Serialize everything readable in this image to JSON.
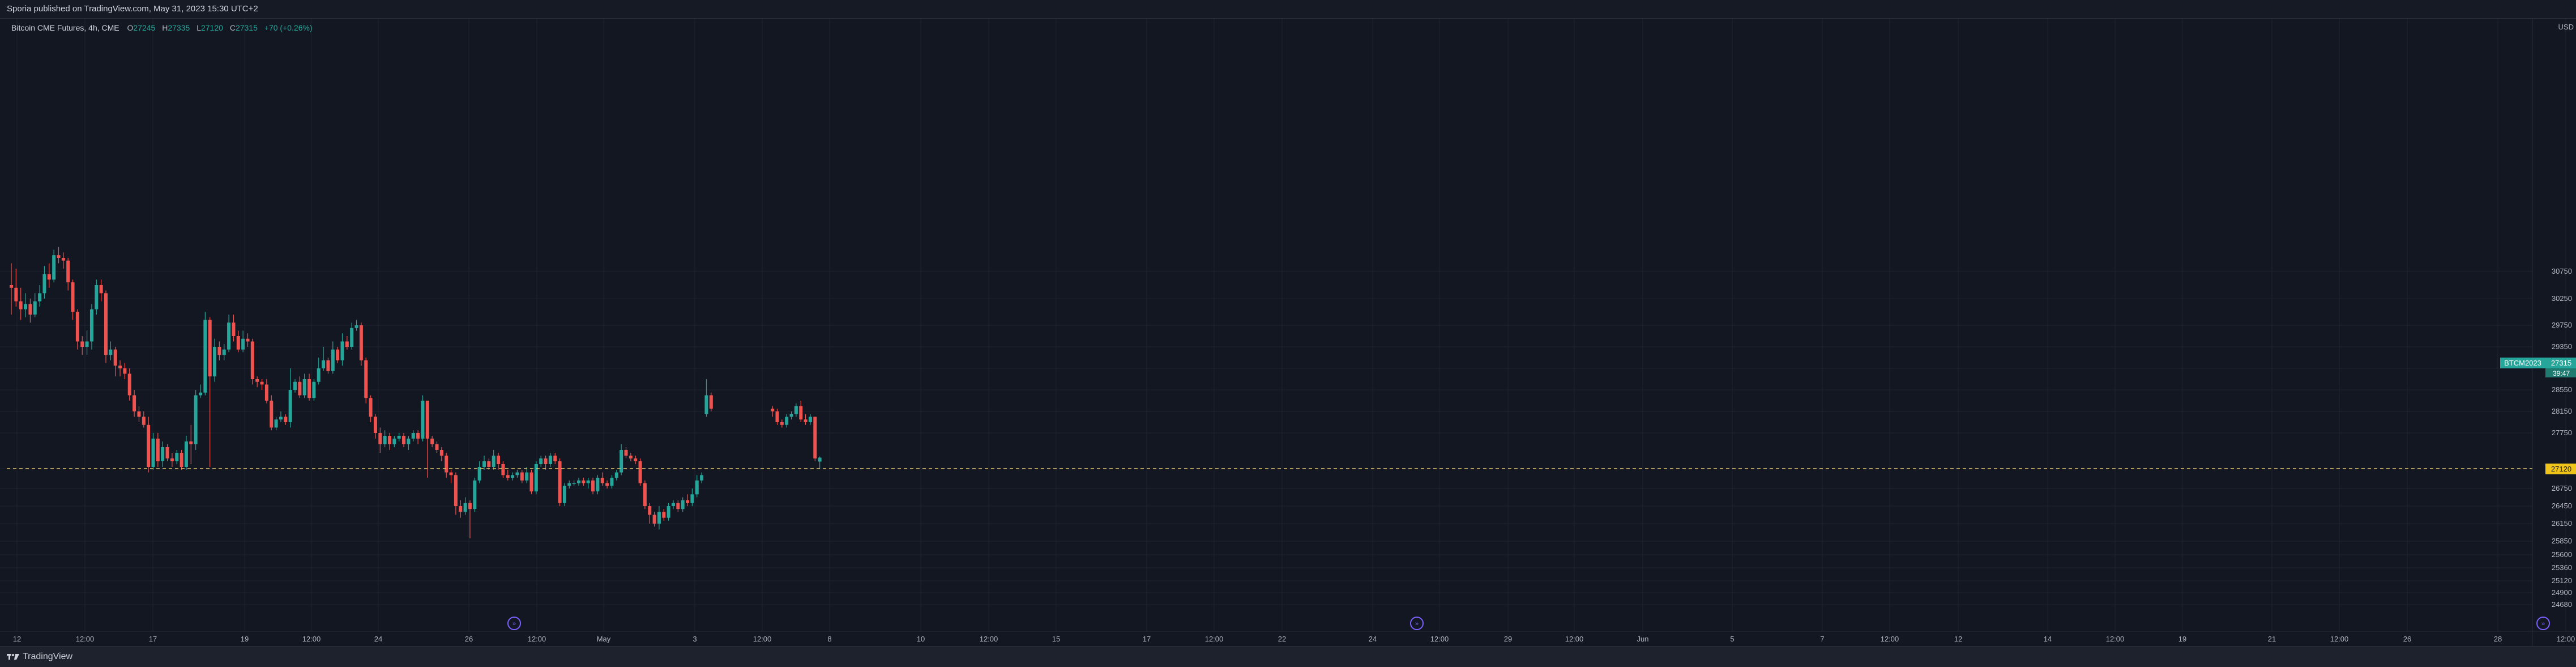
{
  "header": {
    "published": "Sporia published on TradingView.com, May 31, 2023 15:30 UTC+2"
  },
  "legend": {
    "title": "Bitcoin CME Futures, 4h, CME",
    "o_label": "O",
    "o": "27245",
    "h_label": "H",
    "h": "27335",
    "l_label": "L",
    "l": "27120",
    "c_label": "C",
    "c": "27315",
    "change": "+70 (+0.26%)"
  },
  "footer": {
    "brand": "TradingView"
  },
  "colors": {
    "up": "#26a69a",
    "down": "#ef5350",
    "background": "#131722",
    "grid": "#1f2330",
    "axis_text": "#b2b5be"
  },
  "price_tags": {
    "symbol_label": "BTCM2023",
    "last_price": "27315",
    "countdown": "39:47",
    "dashed_price": 27120,
    "dashed_label": "27120"
  },
  "chart_data": {
    "type": "candlestick",
    "currency": "USD",
    "y_ticks": [
      24680,
      24900,
      25120,
      25360,
      25600,
      25850,
      26150,
      26450,
      26750,
      27120,
      27750,
      28150,
      28550,
      28950,
      29350,
      29750,
      30250,
      30750
    ],
    "x_labels": [
      "12",
      "12:00",
      "17",
      "19",
      "12:00",
      "24",
      "26",
      "12:00",
      "May",
      "3",
      "12:00",
      "8",
      "10",
      "12:00",
      "15",
      "17",
      "12:00",
      "22",
      "24",
      "12:00",
      "29",
      "12:00",
      "Jun",
      "5",
      "7",
      "12:00",
      "12",
      "14",
      "12:00",
      "19",
      "21",
      "12:00",
      "26",
      "28",
      "12:00"
    ],
    "candles": [
      [
        30500,
        30450,
        30900,
        29950
      ],
      [
        30450,
        30200,
        30800,
        30100
      ],
      [
        30200,
        30050,
        30450,
        29850
      ],
      [
        30050,
        30150,
        30350,
        29900
      ],
      [
        30150,
        29950,
        30250,
        29800
      ],
      [
        29950,
        30200,
        30350,
        29900
      ],
      [
        30200,
        30350,
        30500,
        30100
      ],
      [
        30350,
        30700,
        30850,
        30250
      ],
      [
        30700,
        30600,
        30900,
        30450
      ],
      [
        30600,
        31050,
        31150,
        30550
      ],
      [
        31050,
        31000,
        31200,
        30900
      ],
      [
        31000,
        30950,
        31100,
        30800
      ],
      [
        30950,
        30550,
        31000,
        30400
      ],
      [
        30550,
        30000,
        30600,
        29850
      ],
      [
        30000,
        29450,
        30050,
        29300
      ],
      [
        29450,
        29350,
        29550,
        29200
      ],
      [
        29350,
        29450,
        29650,
        29200
      ],
      [
        29450,
        30050,
        30150,
        29300
      ],
      [
        30050,
        30500,
        30600,
        29950
      ],
      [
        30500,
        30350,
        30600,
        30200
      ],
      [
        30350,
        29200,
        30400,
        29050
      ],
      [
        29200,
        29300,
        29450,
        29100
      ],
      [
        29300,
        29000,
        29350,
        28800
      ],
      [
        29000,
        28950,
        29100,
        28800
      ],
      [
        28950,
        28850,
        29050,
        28750
      ],
      [
        28850,
        28450,
        28950,
        28350
      ],
      [
        28450,
        28150,
        28550,
        28050
      ],
      [
        28150,
        28050,
        28250,
        27950
      ],
      [
        28050,
        27900,
        28150,
        27850
      ],
      [
        27900,
        27150,
        28050,
        27050
      ],
      [
        27150,
        27650,
        27750,
        27100
      ],
      [
        27650,
        27250,
        27750,
        27150
      ],
      [
        27250,
        27500,
        27600,
        27150
      ],
      [
        27500,
        27300,
        27550,
        27250
      ],
      [
        27300,
        27250,
        27400,
        27150
      ],
      [
        27250,
        27400,
        27450,
        27200
      ],
      [
        27400,
        27150,
        27450,
        27100
      ],
      [
        27150,
        27600,
        27700,
        27100
      ],
      [
        27600,
        27550,
        27900,
        27200
      ],
      [
        27550,
        28450,
        28550,
        27450
      ],
      [
        28450,
        28500,
        28650,
        28400
      ],
      [
        28500,
        29850,
        30000,
        28450
      ],
      [
        29850,
        28800,
        29900,
        27150
      ],
      [
        28800,
        29350,
        29500,
        28700
      ],
      [
        29350,
        29200,
        29450,
        29100
      ],
      [
        29200,
        29300,
        29400,
        29100
      ],
      [
        29300,
        29800,
        29950,
        29250
      ],
      [
        29800,
        29550,
        29950,
        29450
      ],
      [
        29550,
        29300,
        29650,
        29250
      ],
      [
        29300,
        29500,
        29650,
        29250
      ],
      [
        29500,
        29450,
        29600,
        29350
      ],
      [
        29450,
        28750,
        29500,
        28650
      ],
      [
        28750,
        28700,
        28800,
        28600
      ],
      [
        28700,
        28650,
        28750,
        28550
      ],
      [
        28650,
        28350,
        28750,
        28300
      ],
      [
        28350,
        27850,
        28450,
        27800
      ],
      [
        27850,
        28000,
        28050,
        27800
      ],
      [
        28000,
        28050,
        28150,
        27950
      ],
      [
        28050,
        27950,
        28100,
        27900
      ],
      [
        27950,
        28550,
        28950,
        27850
      ],
      [
        28550,
        28700,
        28750,
        28500
      ],
      [
        28700,
        28450,
        28800,
        28400
      ],
      [
        28450,
        28750,
        28850,
        28400
      ],
      [
        28750,
        28400,
        28850,
        28350
      ],
      [
        28400,
        28700,
        28750,
        28350
      ],
      [
        28700,
        28950,
        29150,
        28650
      ],
      [
        28950,
        29100,
        29350,
        28900
      ],
      [
        29100,
        28900,
        29150,
        28850
      ],
      [
        28900,
        29300,
        29450,
        28850
      ],
      [
        29300,
        29100,
        29350,
        29050
      ],
      [
        29100,
        29450,
        29600,
        29000
      ],
      [
        29450,
        29350,
        29550,
        29300
      ],
      [
        29350,
        29700,
        29800,
        29300
      ],
      [
        29700,
        29750,
        29850,
        29650
      ],
      [
        29750,
        29100,
        29800,
        29000
      ],
      [
        29100,
        28400,
        29150,
        28300
      ],
      [
        28400,
        28050,
        28450,
        27950
      ],
      [
        28050,
        27750,
        28100,
        27650
      ],
      [
        27750,
        27550,
        27850,
        27400
      ],
      [
        27550,
        27700,
        27800,
        27500
      ],
      [
        27700,
        27550,
        27750,
        27450
      ],
      [
        27550,
        27650,
        27700,
        27500
      ],
      [
        27650,
        27700,
        27750,
        27600
      ],
      [
        27700,
        27550,
        27750,
        27500
      ],
      [
        27550,
        27650,
        27700,
        27450
      ],
      [
        27650,
        27750,
        27800,
        27600
      ],
      [
        27750,
        27650,
        27800,
        27550
      ],
      [
        27650,
        28350,
        28450,
        27600
      ],
      [
        28350,
        27650,
        28350,
        26950
      ],
      [
        27650,
        27550,
        27700,
        27500
      ],
      [
        27550,
        27450,
        27600,
        27400
      ],
      [
        27450,
        27350,
        27500,
        27250
      ],
      [
        27350,
        27050,
        27400,
        26950
      ],
      [
        27050,
        27000,
        27100,
        26850
      ],
      [
        27000,
        26450,
        27050,
        26300
      ],
      [
        26450,
        26350,
        26550,
        26250
      ],
      [
        26350,
        26500,
        26600,
        26300
      ],
      [
        26500,
        26400,
        26550,
        25900
      ],
      [
        26400,
        26900,
        26950,
        26350
      ],
      [
        26900,
        27150,
        27250,
        26850
      ],
      [
        27150,
        27250,
        27350,
        27100
      ],
      [
        27250,
        27150,
        27300,
        27100
      ],
      [
        27150,
        27350,
        27450,
        27100
      ],
      [
        27350,
        27200,
        27400,
        27100
      ],
      [
        27200,
        27000,
        27250,
        26950
      ],
      [
        27000,
        26950,
        27100,
        26900
      ],
      [
        26950,
        27000,
        27050,
        26900
      ],
      [
        27000,
        27050,
        27100,
        26950
      ],
      [
        27050,
        26900,
        27100,
        26850
      ],
      [
        26900,
        27050,
        27150,
        26850
      ],
      [
        27050,
        26700,
        27100,
        26650
      ],
      [
        26700,
        27200,
        27250,
        26650
      ],
      [
        27200,
        27300,
        27350,
        27150
      ],
      [
        27300,
        27200,
        27350,
        27100
      ],
      [
        27200,
        27350,
        27400,
        27150
      ],
      [
        27350,
        27250,
        27400,
        27200
      ],
      [
        27250,
        26500,
        27300,
        26450
      ],
      [
        26500,
        26800,
        26850,
        26450
      ],
      [
        26800,
        26850,
        26900,
        26750
      ],
      [
        26850,
        26850,
        26900,
        26800
      ],
      [
        26850,
        26900,
        26950,
        26800
      ],
      [
        26900,
        26850,
        26950,
        26800
      ],
      [
        26850,
        26900,
        26950,
        26750
      ],
      [
        26900,
        26700,
        26950,
        26650
      ],
      [
        26700,
        26950,
        27000,
        26650
      ],
      [
        26950,
        26850,
        27050,
        26800
      ],
      [
        26850,
        26800,
        26900,
        26750
      ],
      [
        26800,
        26950,
        27000,
        26750
      ],
      [
        26950,
        27050,
        27100,
        26900
      ],
      [
        27050,
        27450,
        27550,
        27000
      ],
      [
        27450,
        27350,
        27500,
        27300
      ],
      [
        27350,
        27300,
        27400,
        27250
      ],
      [
        27300,
        27250,
        27350,
        27200
      ],
      [
        27250,
        26850,
        27300,
        26800
      ],
      [
        26850,
        26450,
        26900,
        26400
      ],
      [
        26450,
        26300,
        26500,
        26150
      ],
      [
        26300,
        26150,
        26350,
        26100
      ],
      [
        26150,
        26350,
        26450,
        26050
      ],
      [
        26350,
        26250,
        26400,
        26200
      ],
      [
        26250,
        26450,
        26500,
        26200
      ],
      [
        26450,
        26500,
        26550,
        26400
      ],
      [
        26500,
        26400,
        26550,
        26350
      ],
      [
        26400,
        26550,
        26600,
        26350
      ],
      [
        26550,
        26500,
        26650,
        26450
      ],
      [
        26500,
        26650,
        26750,
        26450
      ],
      [
        26650,
        26900,
        27000,
        26600
      ],
      [
        26900,
        27000,
        27050,
        26850
      ],
      [
        28100,
        28450,
        28750,
        28050
      ],
      [
        28450,
        28200,
        28500,
        28150
      ],
      [
        28200,
        28150,
        28250,
        28050
      ],
      [
        28150,
        27950,
        28200,
        27900
      ],
      [
        27950,
        27900,
        28000,
        27850
      ],
      [
        27900,
        28050,
        28100,
        27850
      ],
      [
        28050,
        28100,
        28150,
        28000
      ],
      [
        28100,
        28250,
        28300,
        28050
      ],
      [
        28250,
        28000,
        28350,
        27950
      ],
      [
        28000,
        27950,
        28100,
        27900
      ],
      [
        27950,
        28050,
        28100,
        27900
      ],
      [
        28050,
        27300,
        28050,
        27250
      ],
      [
        27245,
        27315,
        27335,
        27120
      ]
    ]
  }
}
